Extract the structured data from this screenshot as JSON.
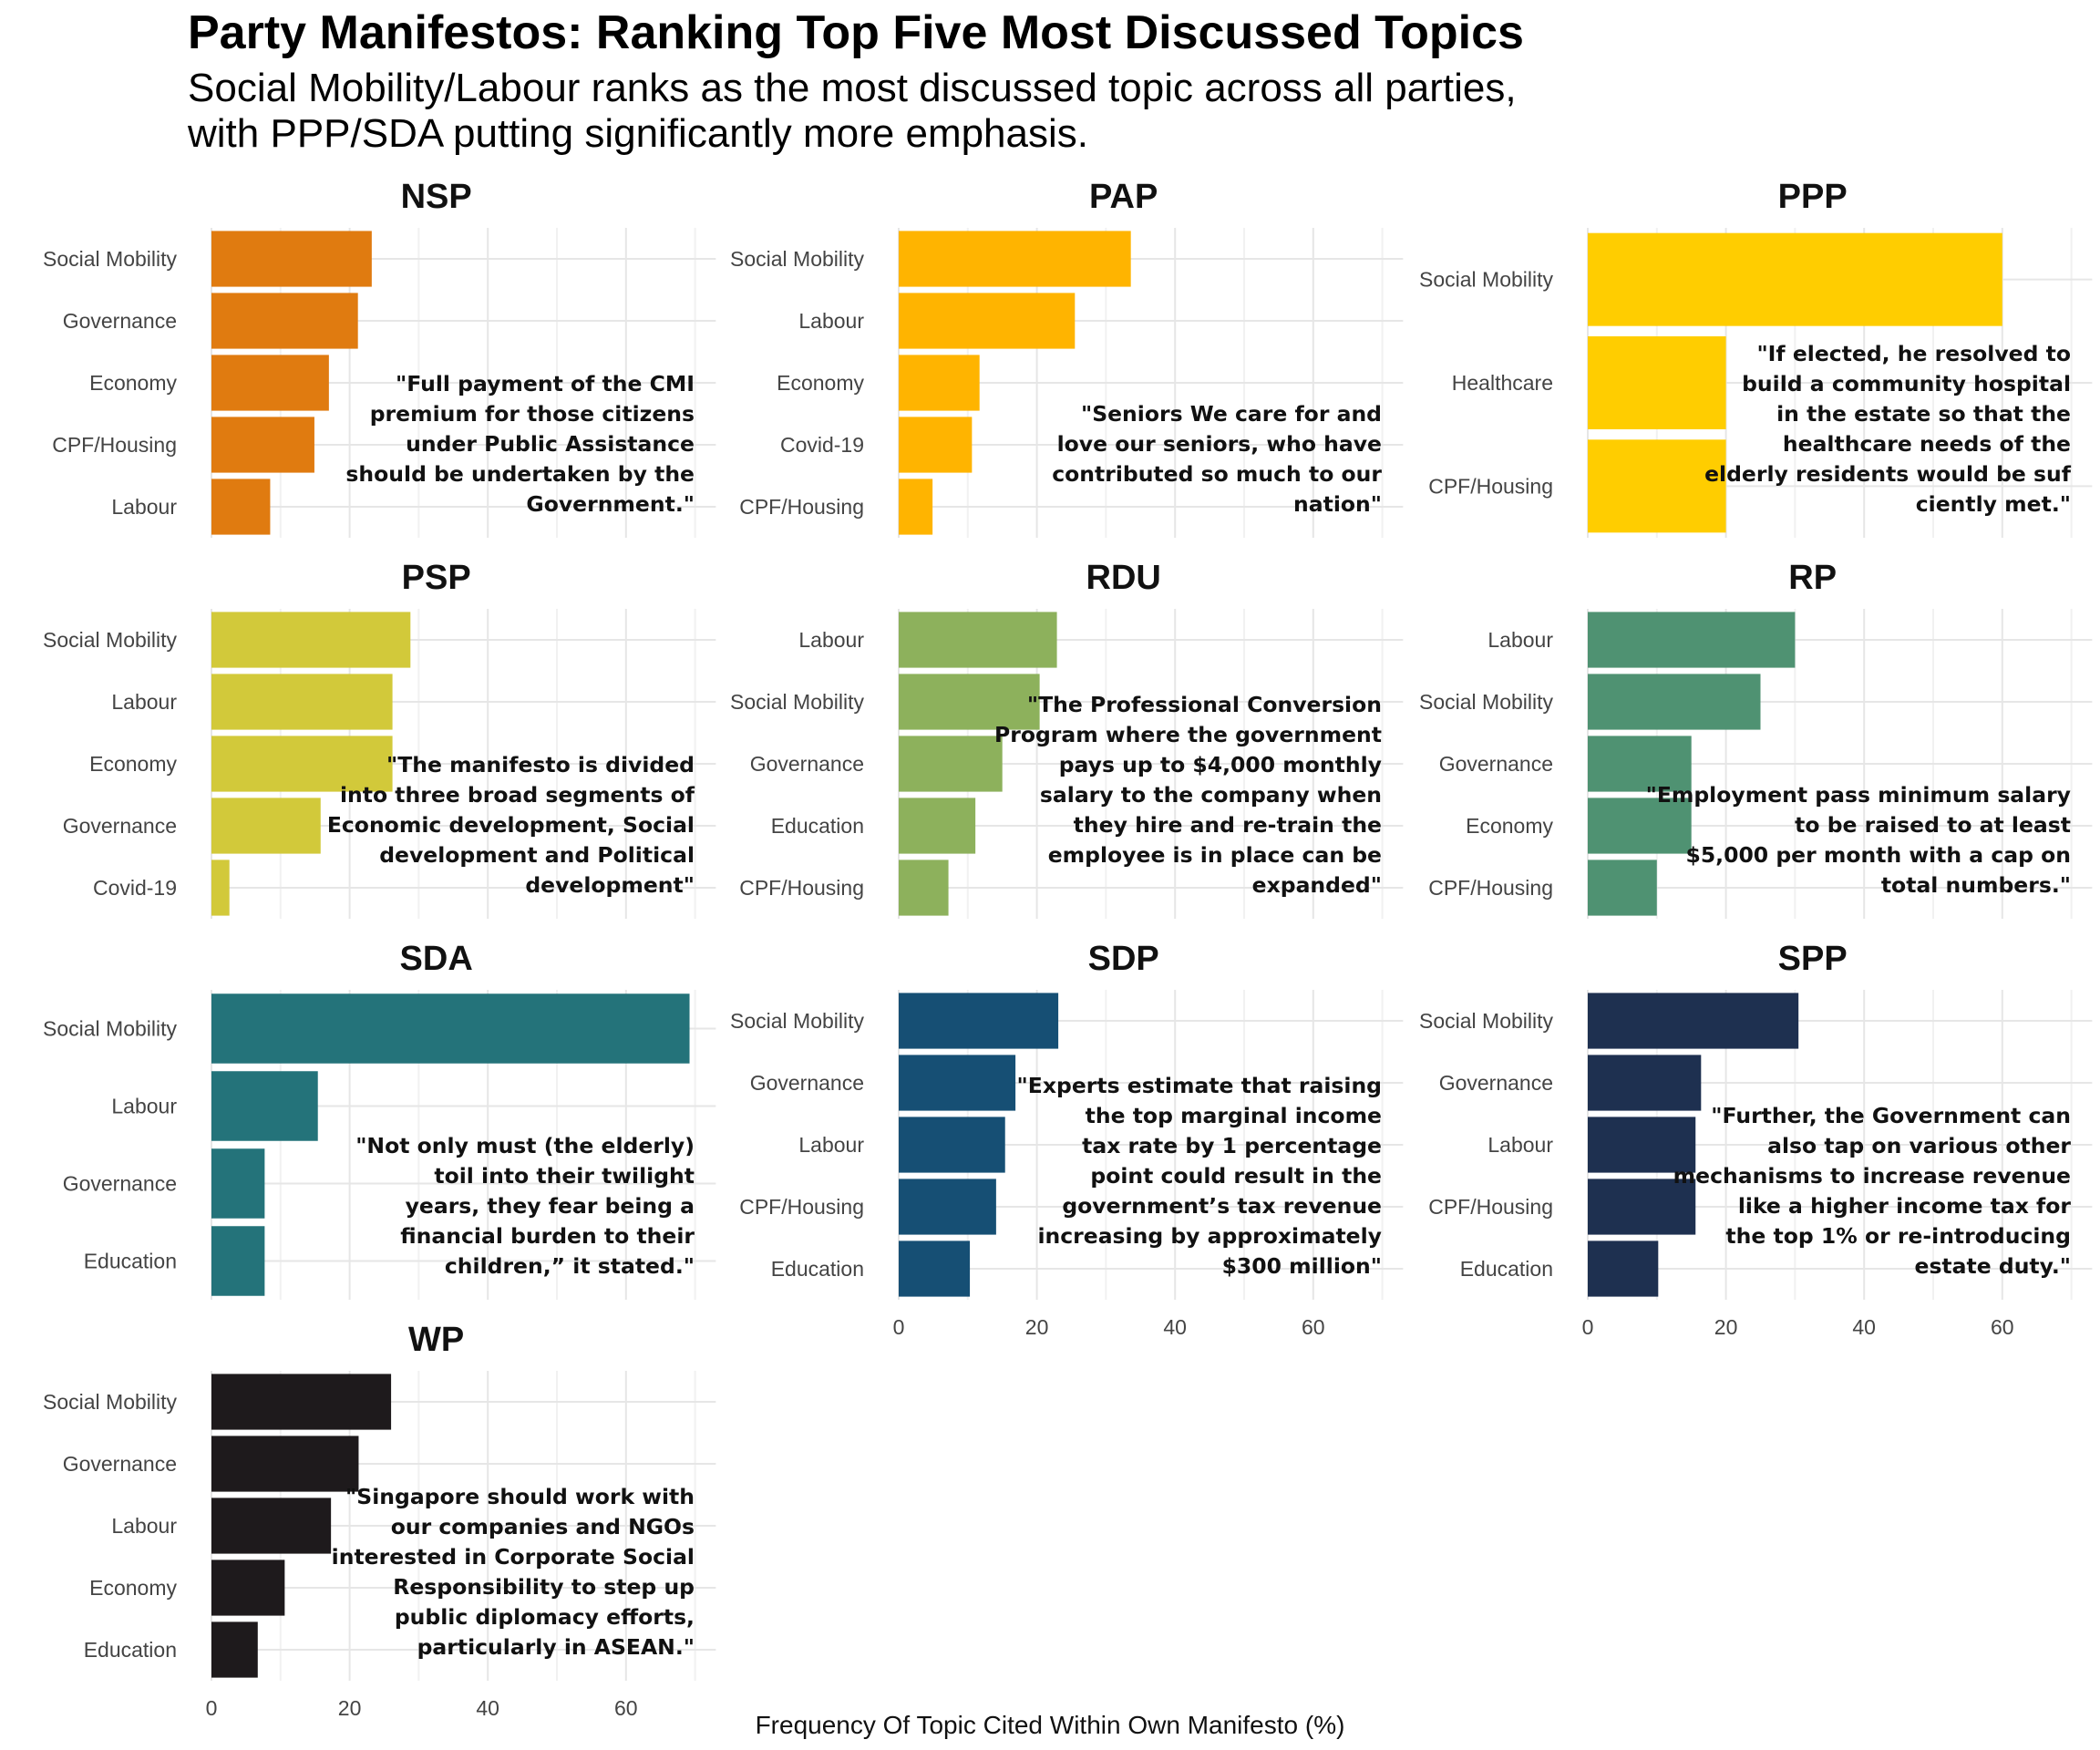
{
  "title": "Party Manifestos: Ranking Top Five Most Discussed Topics",
  "subtitle": "Social Mobility/Labour ranks as the most discussed topic across all parties,\nwith PPP/SDA putting significantly more emphasis.",
  "x_axis_label": "Frequency Of Topic Cited Within Own Manifesto (%)",
  "chart_data": {
    "type": "bar",
    "orientation": "horizontal",
    "facet_by": "party",
    "xlim": [
      0,
      73
    ],
    "x_ticks": [
      0,
      20,
      40,
      60
    ],
    "grid": true,
    "panels": [
      {
        "party": "NSP",
        "color": "#E07B10",
        "categories": [
          "Social Mobility",
          "Governance",
          "Economy",
          "CPF/Housing",
          "Labour"
        ],
        "values": [
          23.2,
          21.2,
          17.0,
          14.9,
          8.5
        ],
        "quote": "\"Full payment of the CMI\npremium for those citizens\nunder Public Assistance\nshould be undertaken by the\nGovernment.\""
      },
      {
        "party": "PAP",
        "color": "#FFB400",
        "categories": [
          "Social Mobility",
          "Labour",
          "Economy",
          "Covid-19",
          "CPF/Housing"
        ],
        "values": [
          33.6,
          25.5,
          11.7,
          10.6,
          4.9
        ],
        "quote": "\"Seniors We care for and\nlove our seniors, who have\ncontributed so much to our\nnation\""
      },
      {
        "party": "PPP",
        "color": "#FFCD00",
        "categories": [
          "Social Mobility",
          "Healthcare",
          "CPF/Housing"
        ],
        "values": [
          60.0,
          20.0,
          20.0
        ],
        "quote": "\"If elected, he resolved to\nbuild a community hospital\nin the estate so that the\nhealthcare needs of the\nelderly residents would be suf\nciently met.\""
      },
      {
        "party": "PSP",
        "color": "#D2C93A",
        "categories": [
          "Social Mobility",
          "Labour",
          "Economy",
          "Governance",
          "Covid-19"
        ],
        "values": [
          28.8,
          26.2,
          26.2,
          15.8,
          2.6
        ],
        "quote": "\"The manifesto is divided\ninto three broad segments of\nEconomic development, Social\ndevelopment and Political\ndevelopment\""
      },
      {
        "party": "RDU",
        "color": "#8DB15C",
        "categories": [
          "Labour",
          "Social Mobility",
          "Governance",
          "Education",
          "CPF/Housing"
        ],
        "values": [
          22.9,
          20.4,
          15.0,
          11.1,
          7.2
        ],
        "quote": "\"The Professional Conversion\nProgram where the government\npays up to $4,000 monthly\nsalary to the company when\nthey hire and re-train the\nemployee is in place can be\nexpanded\""
      },
      {
        "party": "RP",
        "color": "#4F9272",
        "categories": [
          "Labour",
          "Social Mobility",
          "Governance",
          "Economy",
          "CPF/Housing"
        ],
        "values": [
          30.0,
          25.0,
          15.0,
          15.0,
          10.0
        ],
        "quote": "\"Employment pass minimum salary\nto be raised to at least\n$5,000 per month with a cap on\ntotal numbers.\""
      },
      {
        "party": "SDA",
        "color": "#24737A",
        "categories": [
          "Social Mobility",
          "Labour",
          "Governance",
          "Education"
        ],
        "values": [
          69.2,
          15.4,
          7.7,
          7.7
        ],
        "quote": "\"Not only must (the elderly)\ntoil into their twilight\nyears, they fear being a\nfinancial burden to their\nchildren,” it stated.\""
      },
      {
        "party": "SDP",
        "color": "#164F74",
        "categories": [
          "Social Mobility",
          "Governance",
          "Labour",
          "CPF/Housing",
          "Education"
        ],
        "values": [
          23.1,
          16.9,
          15.4,
          14.1,
          10.3
        ],
        "quote": "\"Experts estimate that raising\nthe top marginal income\ntax rate by 1 percentage\npoint could result in the\ngovernment’s tax revenue\nincreasing by approximately\n$300 million\""
      },
      {
        "party": "SPP",
        "color": "#1E3050",
        "categories": [
          "Social Mobility",
          "Governance",
          "Labour",
          "CPF/Housing",
          "Education"
        ],
        "values": [
          30.5,
          16.4,
          15.6,
          15.6,
          10.2
        ],
        "quote": "\"Further, the Government can\nalso tap on various other\nmechanisms to increase revenue\nlike a higher income tax for\nthe top 1% or re-introducing\nestate duty.\""
      },
      {
        "party": "WP",
        "color": "#1E1A1C",
        "categories": [
          "Social Mobility",
          "Governance",
          "Labour",
          "Economy",
          "Education"
        ],
        "values": [
          26.0,
          21.3,
          17.3,
          10.6,
          6.7
        ],
        "quote": "\"Singapore should work with\nour companies and NGOs\ninterested in Corporate Social\nResponsibility to step up\npublic diplomacy efforts,\nparticularly in ASEAN.\""
      }
    ]
  }
}
